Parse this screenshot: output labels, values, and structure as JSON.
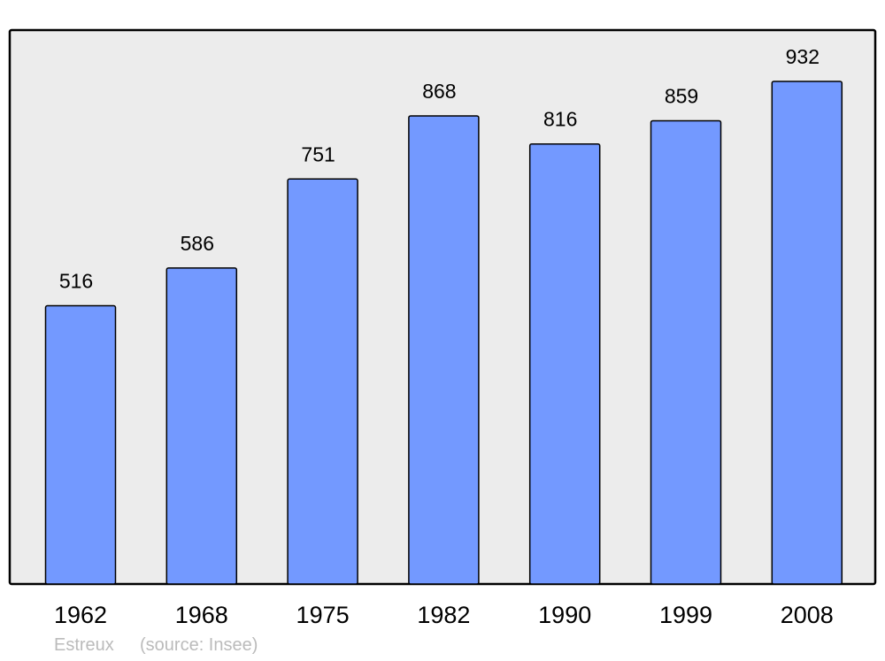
{
  "chart_data": {
    "type": "bar",
    "categories": [
      "1962",
      "1968",
      "1975",
      "1982",
      "1990",
      "1999",
      "2008"
    ],
    "values": [
      516,
      586,
      751,
      868,
      816,
      859,
      932
    ],
    "title": "",
    "xlabel": "",
    "ylabel": "",
    "ylim": [
      0,
      932
    ],
    "grid": false,
    "data_labels": true,
    "colors": {
      "bar": "#7399ff",
      "plot_background": "#ececec",
      "border": "#000000"
    }
  },
  "footer": {
    "place": "Estreux",
    "source": "(source: Insee)"
  }
}
